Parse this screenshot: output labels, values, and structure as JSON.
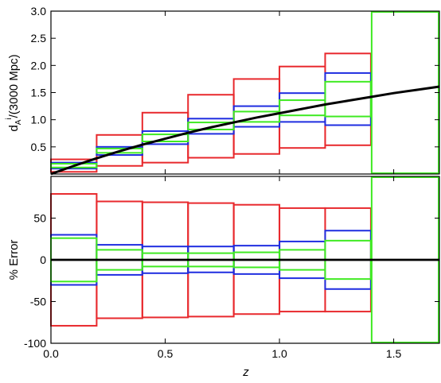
{
  "chart_data": [
    {
      "type": "step",
      "panel": "top",
      "ylabel": "d_A^i/(3000 Mpc)",
      "ylabel_parts": {
        "main": "d",
        "sub": "A",
        "sup": "i",
        "rest": "/(3000 Mpc)"
      },
      "xlim": [
        0.0,
        1.7
      ],
      "ylim": [
        0.0,
        3.0
      ],
      "yticks": [
        "0.5",
        "1.0",
        "1.5",
        "2.0",
        "2.5",
        "3.0"
      ],
      "ytick_values": [
        0.5,
        1.0,
        1.5,
        2.0,
        2.5,
        3.0
      ],
      "colors": {
        "red": "#e8292d",
        "blue": "#1f2de0",
        "green": "#3fea22",
        "curve": "#000000"
      },
      "bins": [
        0.0,
        0.2,
        0.4,
        0.6,
        0.8,
        1.0,
        1.2,
        1.4
      ],
      "boxes": {
        "red": [
          [
            0.04,
            0.27
          ],
          [
            0.15,
            0.72
          ],
          [
            0.21,
            1.13
          ],
          [
            0.3,
            1.46
          ],
          [
            0.37,
            1.75
          ],
          [
            0.48,
            1.98
          ],
          [
            0.53,
            2.22
          ]
        ],
        "blue": [
          [
            0.1,
            0.21
          ],
          [
            0.35,
            0.5
          ],
          [
            0.55,
            0.79
          ],
          [
            0.74,
            1.02
          ],
          [
            0.87,
            1.25
          ],
          [
            0.96,
            1.49
          ],
          [
            0.9,
            1.86
          ]
        ],
        "green": [
          [
            0.12,
            0.19
          ],
          [
            0.39,
            0.47
          ],
          [
            0.6,
            0.73
          ],
          [
            0.82,
            0.95
          ],
          [
            0.96,
            1.15
          ],
          [
            1.08,
            1.36
          ],
          [
            1.06,
            1.7
          ]
        ]
      },
      "extra_bin": {
        "color": "green",
        "x": [
          1.4,
          1.7
        ],
        "y": [
          0.0,
          3.0
        ]
      },
      "curve": {
        "name": "",
        "x": [
          0.0,
          0.1,
          0.2,
          0.3,
          0.4,
          0.5,
          0.6,
          0.7,
          0.8,
          0.9,
          1.0,
          1.1,
          1.2,
          1.3,
          1.4,
          1.5,
          1.6,
          1.7
        ],
        "y": [
          0.0,
          0.15,
          0.29,
          0.42,
          0.54,
          0.65,
          0.76,
          0.86,
          0.95,
          1.04,
          1.12,
          1.2,
          1.28,
          1.35,
          1.42,
          1.49,
          1.55,
          1.61
        ]
      }
    },
    {
      "type": "step",
      "panel": "bottom",
      "xlabel": "z",
      "ylabel": "% Error",
      "xlim": [
        0.0,
        1.7
      ],
      "ylim": [
        -100,
        100
      ],
      "xticks": [
        "0.0",
        "0.5",
        "1.0",
        "1.5"
      ],
      "xtick_values": [
        0.0,
        0.5,
        1.0,
        1.5
      ],
      "yticks": [
        "-100",
        "-50",
        "0",
        "50"
      ],
      "ytick_values": [
        -100,
        -50,
        0,
        50
      ],
      "bins": [
        0.0,
        0.2,
        0.4,
        0.6,
        0.8,
        1.0,
        1.2,
        1.4
      ],
      "boxes": {
        "red": [
          [
            -79,
            79
          ],
          [
            -70,
            70
          ],
          [
            -69,
            69
          ],
          [
            -68,
            68
          ],
          [
            -65,
            66
          ],
          [
            -62,
            62
          ],
          [
            -62,
            62
          ]
        ],
        "blue": [
          [
            -30,
            30
          ],
          [
            -18,
            18
          ],
          [
            -16,
            16
          ],
          [
            -15,
            16
          ],
          [
            -17,
            17
          ],
          [
            -22,
            22
          ],
          [
            -35,
            35
          ]
        ],
        "green": [
          [
            -26,
            26
          ],
          [
            -12,
            12
          ],
          [
            -8,
            8
          ],
          [
            -8,
            8
          ],
          [
            -9,
            9
          ],
          [
            -12,
            12
          ],
          [
            -23,
            23
          ]
        ]
      },
      "extra_bin": {
        "color": "green",
        "x": [
          1.4,
          1.7
        ],
        "y": [
          -100,
          100
        ]
      },
      "zero_line": {
        "y": 0
      }
    }
  ]
}
